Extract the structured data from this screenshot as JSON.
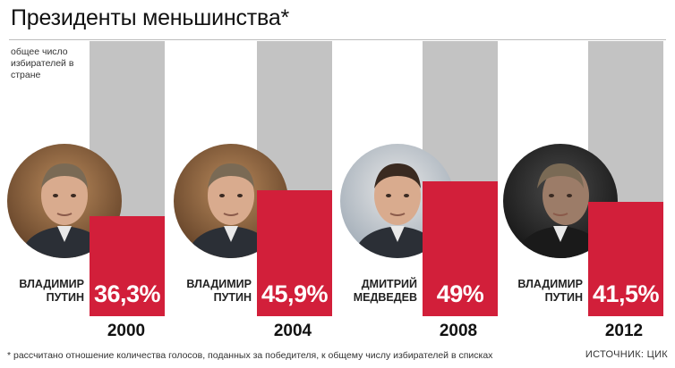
{
  "title": "Президенты меньшинства*",
  "legend_note": "общее число избирателей в стране",
  "footnote": "* рассчитано отношение количества голосов, поданных за победителя, к общему числу избирателей в списках",
  "source": "ИСТОЧНИК: ЦИК",
  "colors": {
    "total_bar": "#c3c3c3",
    "winner_bar": "#d21f3a",
    "percent_text": "#ffffff"
  },
  "chart_data": {
    "type": "bar",
    "categories": [
      "2000",
      "2004",
      "2008",
      "2012"
    ],
    "candidates": [
      {
        "line1": "ВЛАДИМИР",
        "line2": "ПУТИН"
      },
      {
        "line1": "ВЛАДИМИР",
        "line2": "ПУТИН"
      },
      {
        "line1": "ДМИТРИЙ",
        "line2": "МЕДВЕДЕВ"
      },
      {
        "line1": "ВЛАДИМИР",
        "line2": "ПУТИН"
      }
    ],
    "values": [
      36.3,
      45.9,
      49,
      41.5
    ],
    "value_labels": [
      "36,3%",
      "45,9%",
      "49%",
      "41,5%"
    ],
    "total": 100,
    "ylim": [
      0,
      100
    ],
    "grid": false
  }
}
